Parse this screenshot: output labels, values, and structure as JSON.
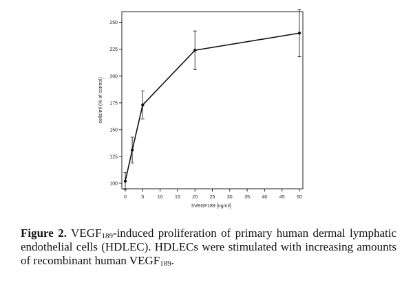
{
  "chart_data": {
    "type": "line",
    "xlabel": "hVEGF189 [ng/ml]",
    "ylabel": "cells/ml (% of control)",
    "xlim": [
      0,
      50
    ],
    "ylim": [
      100,
      260
    ],
    "xticks": [
      0,
      5,
      10,
      15,
      20,
      25,
      30,
      35,
      40,
      45,
      50
    ],
    "yticks": [
      100,
      125,
      150,
      175,
      200,
      225,
      250
    ],
    "x": [
      0,
      2,
      5,
      20,
      50
    ],
    "y": [
      102,
      131,
      173,
      224,
      240
    ],
    "error": [
      8,
      12,
      13,
      18,
      22
    ],
    "series": [
      {
        "name": "VEGF189",
        "x": [
          0,
          2,
          5,
          20,
          50
        ],
        "values": [
          102,
          131,
          173,
          224,
          240
        ],
        "error": [
          8,
          12,
          13,
          18,
          22
        ]
      }
    ]
  },
  "caption": {
    "label": "Figure 2.",
    "t1": "VEGF",
    "s1": "189",
    "t2": "-induced proliferation of primary human dermal lymphatic endothelial cells (HDLEC). HDLECs were stimulated with increasing amounts of recombinant human VEGF",
    "s2": "189",
    "t3": "."
  }
}
